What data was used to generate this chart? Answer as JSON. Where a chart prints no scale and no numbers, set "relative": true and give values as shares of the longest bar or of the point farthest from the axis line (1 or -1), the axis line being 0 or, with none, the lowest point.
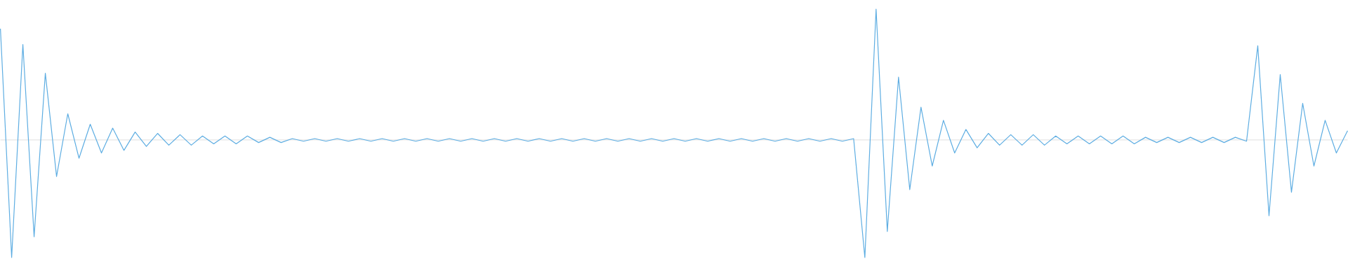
{
  "chart_data": {
    "type": "line",
    "relative": true,
    "categories": [
      null,
      null,
      null,
      null,
      null,
      null,
      null,
      null,
      null,
      null,
      null,
      null,
      null,
      null,
      null,
      null,
      null,
      null,
      null,
      null,
      null,
      null,
      null,
      null,
      null,
      null,
      null,
      null,
      null,
      null,
      null,
      null,
      null,
      null,
      null,
      null,
      null,
      null,
      null,
      null,
      null,
      null,
      null,
      null,
      null,
      null,
      null,
      null,
      null,
      null,
      null,
      null,
      null,
      null,
      null,
      null,
      null,
      null,
      null,
      null,
      null,
      null,
      null,
      null,
      null,
      null,
      null,
      null,
      null,
      null,
      null,
      null,
      null,
      null,
      null,
      null,
      null,
      null,
      null,
      null,
      null,
      null,
      null,
      null,
      null,
      null,
      null,
      null,
      null,
      null,
      null,
      null,
      null,
      null,
      null,
      null,
      null,
      null,
      null,
      null,
      null,
      null,
      null,
      null,
      null,
      null,
      null,
      null,
      null,
      null,
      null,
      null,
      null,
      null,
      null,
      null,
      null,
      null,
      null,
      null,
      null
    ],
    "series": [
      {
        "color": "#5dade2",
        "values": [
          0.85,
          -0.9,
          0.73,
          -0.74,
          0.51,
          -0.28,
          0.2,
          -0.14,
          0.12,
          -0.1,
          0.09,
          -0.08,
          0.06,
          -0.05,
          0.05,
          -0.04,
          0.04,
          -0.04,
          0.03,
          -0.03,
          0.03,
          -0.03,
          0.03,
          -0.02,
          0.02,
          -0.02,
          0.01,
          -0.01,
          0.01,
          -0.01,
          0.01,
          -0.01,
          0.01,
          -0.01,
          0.01,
          -0.01,
          0.01,
          -0.01,
          0.01,
          -0.01,
          0.01,
          -0.01,
          0.01,
          -0.01,
          0.01,
          -0.01,
          0.01,
          -0.01,
          0.01,
          -0.01,
          0.01,
          -0.01,
          0.01,
          -0.01,
          0.01,
          -0.01,
          0.01,
          -0.01,
          0.01,
          -0.01,
          0.01,
          -0.01,
          0.01,
          -0.01,
          0.01,
          -0.01,
          0.01,
          -0.01,
          0.01,
          -0.01,
          0.01,
          -0.01,
          0.01,
          -0.01,
          0.01,
          -0.01,
          0.01,
          -0.9,
          1,
          -0.7,
          0.48,
          -0.38,
          0.25,
          -0.2,
          0.15,
          -0.1,
          0.08,
          -0.06,
          0.05,
          -0.04,
          0.04,
          -0.04,
          0.04,
          -0.04,
          0.03,
          -0.03,
          0.03,
          -0.03,
          0.03,
          -0.03,
          0.03,
          -0.03,
          0.02,
          -0.02,
          0.02,
          -0.02,
          0.02,
          -0.02,
          0.02,
          -0.02,
          0.02,
          -0.01,
          0.72,
          -0.58,
          0.5,
          -0.4,
          0.28,
          -0.2,
          0.15,
          -0.1,
          0.07
        ]
      }
    ]
  }
}
